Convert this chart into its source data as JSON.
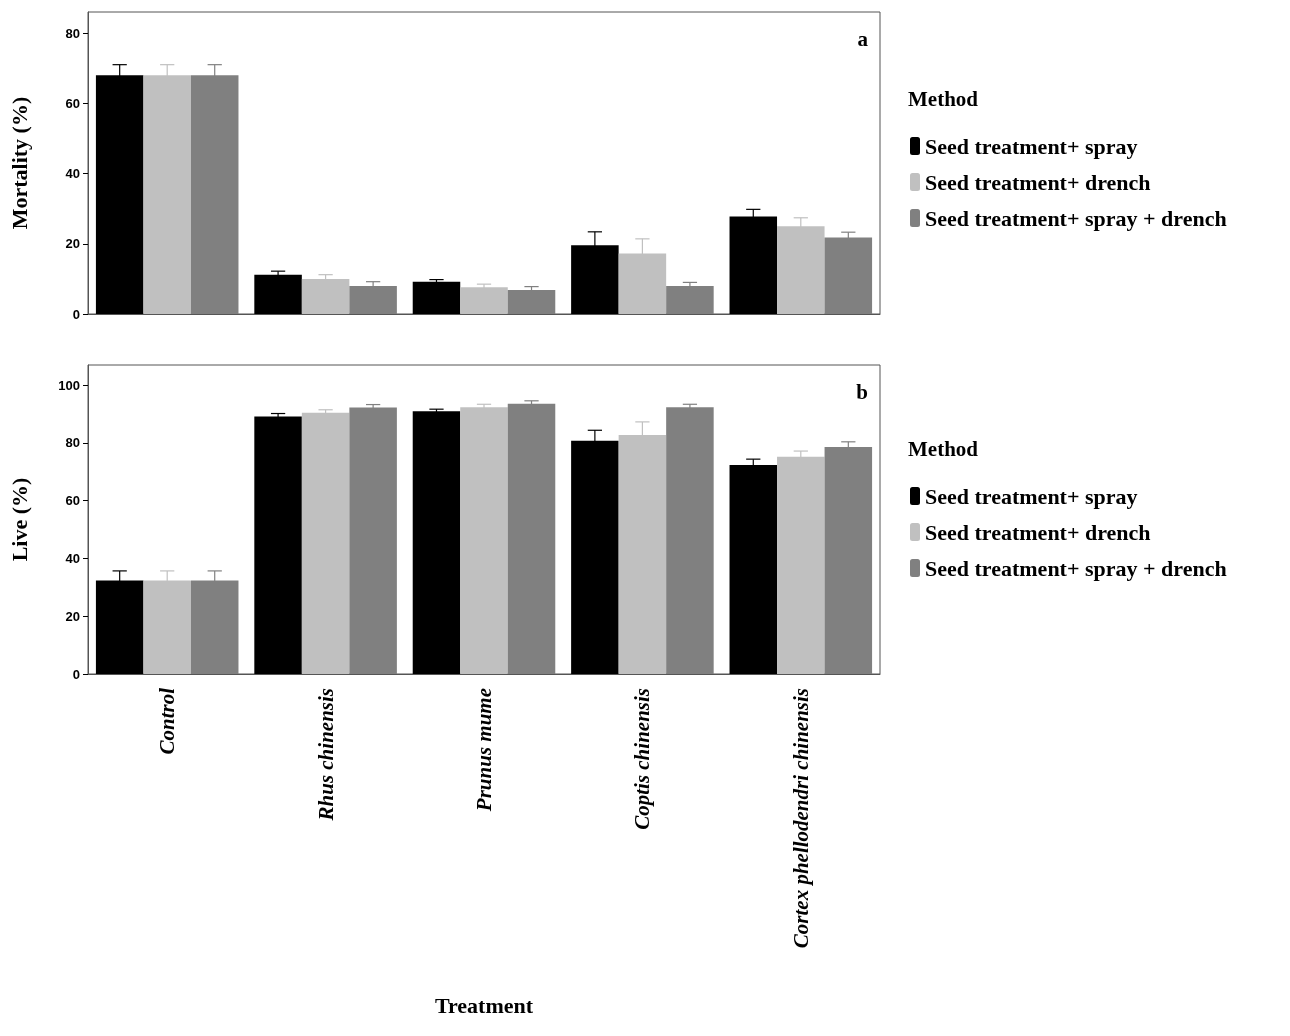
{
  "chart_data": [
    {
      "type": "bar",
      "ylabel": "Mortality (%)",
      "legend_title": "Method",
      "annotations": [
        "a"
      ],
      "categories": [
        null,
        null,
        null,
        null,
        null
      ],
      "series": [
        {
          "name": "Seed treatment+ spray",
          "color": "#000000",
          "values": [
            68,
            11.2,
            9.2,
            19.6,
            27.8
          ],
          "errors": [
            3,
            1,
            0.6,
            3.8,
            2
          ]
        },
        {
          "name": "Seed treatment+ drench",
          "color": "#c0c0c0",
          "values": [
            68,
            10,
            7.6,
            17.2,
            25
          ],
          "errors": [
            3,
            1.2,
            0.9,
            4.2,
            2.4
          ]
        },
        {
          "name": "Seed treatment+ spray + drench",
          "color": "#808080",
          "values": [
            68,
            8,
            6.8,
            8,
            21.8
          ],
          "errors": [
            3,
            1.2,
            1,
            1,
            1.5
          ]
        }
      ],
      "ylim": [
        0,
        86
      ],
      "yticks": [
        0,
        20,
        40,
        60,
        80
      ],
      "grid": false,
      "legend": "right",
      "tick_labels": "y"
    },
    {
      "type": "bar",
      "xlabel": "Treatment",
      "ylabel": "Live (%)",
      "legend_title": "Method",
      "annotations": [
        "b"
      ],
      "categories": [
        "Control",
        "Rhus chinensis",
        "Prunus mume",
        "Coptis chinensis",
        "Cortex phellodendri chinensis"
      ],
      "series": [
        {
          "name": "Seed treatment+ spray",
          "color": "#000000",
          "values": [
            32.4,
            89.2,
            91,
            80.8,
            72.4
          ],
          "errors": [
            3.3,
            1,
            0.7,
            3.6,
            2
          ]
        },
        {
          "name": "Seed treatment+ drench",
          "color": "#c0c0c0",
          "values": [
            32.4,
            90.5,
            92.4,
            82.8,
            75.2
          ],
          "errors": [
            3.3,
            1,
            1,
            4.5,
            2
          ]
        },
        {
          "name": "Seed treatment+ spray + drench",
          "color": "#808080",
          "values": [
            32.4,
            92.3,
            93.6,
            92.4,
            78.6
          ],
          "errors": [
            3.3,
            1,
            1,
            1,
            1.8
          ]
        }
      ],
      "ylim": [
        0,
        107
      ],
      "yticks": [
        0,
        20,
        40,
        60,
        80,
        100
      ],
      "grid": false,
      "legend": "right"
    }
  ]
}
